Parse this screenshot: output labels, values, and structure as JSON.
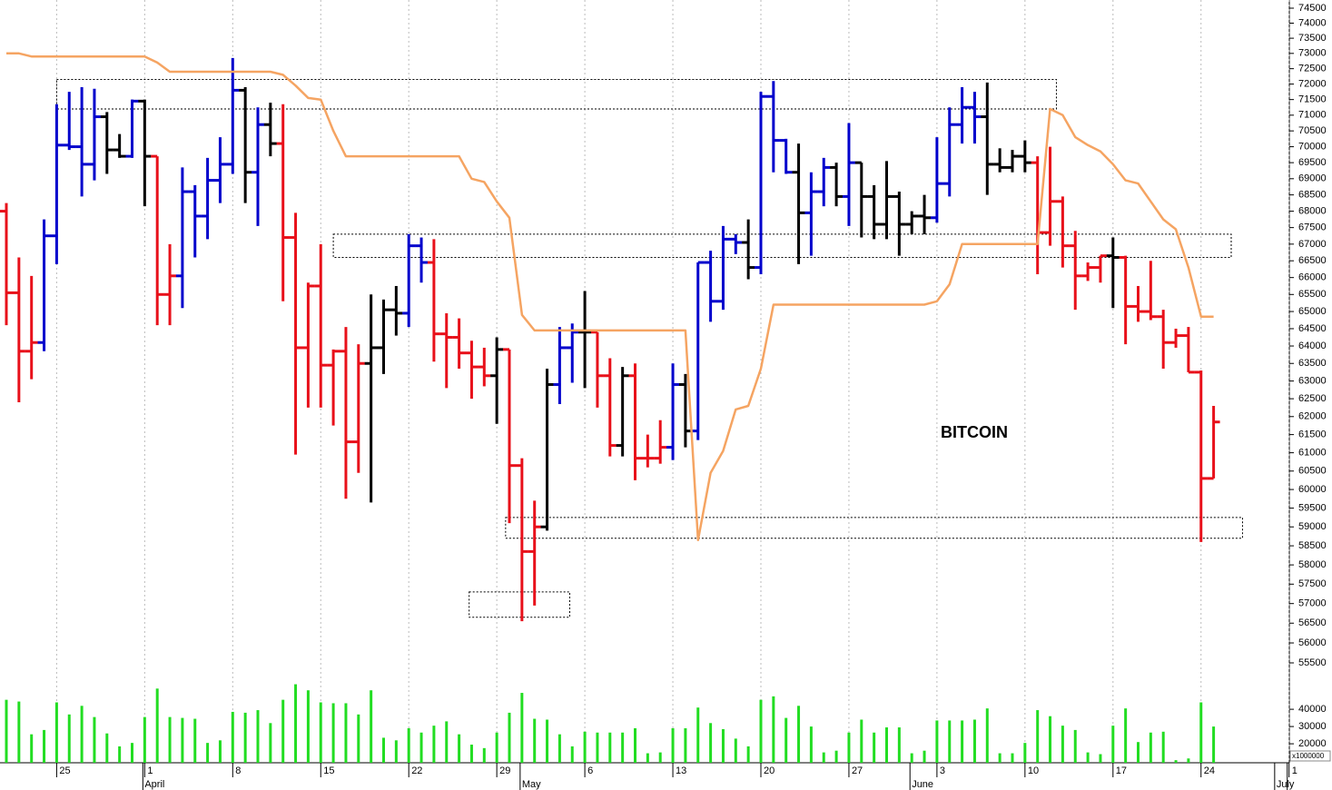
{
  "chart_data": [
    {
      "type": "ohlc",
      "annotation": "BITCOIN",
      "log_scale": true,
      "grid": true,
      "ylim": [
        55500,
        74500
      ],
      "yticks": [
        55500,
        56000,
        56500,
        57000,
        57500,
        58000,
        58500,
        59000,
        59500,
        60000,
        60500,
        61000,
        61500,
        62000,
        62500,
        63000,
        63500,
        64000,
        64500,
        65000,
        65500,
        66000,
        66500,
        67000,
        67500,
        68000,
        68500,
        69000,
        69500,
        70000,
        70500,
        71000,
        71500,
        72000,
        72500,
        73000,
        73500,
        74000,
        74500
      ],
      "categories": [
        null,
        null,
        null,
        null,
        "25",
        null,
        null,
        null,
        null,
        null,
        null,
        "1",
        null,
        null,
        null,
        null,
        null,
        null,
        "8",
        null,
        null,
        null,
        null,
        null,
        null,
        "15",
        null,
        null,
        null,
        null,
        null,
        null,
        "22",
        null,
        null,
        null,
        null,
        null,
        null,
        "29",
        null,
        null,
        null,
        null,
        null,
        null,
        "6",
        null,
        null,
        null,
        null,
        null,
        null,
        "13",
        null,
        null,
        null,
        null,
        null,
        null,
        "20",
        null,
        null,
        null,
        null,
        null,
        null,
        "27",
        null,
        null,
        null,
        null,
        null,
        null,
        "3",
        null,
        null,
        null,
        null,
        null,
        null,
        "10",
        null,
        null,
        null,
        null,
        null,
        null,
        "17",
        null,
        null,
        null,
        null,
        null,
        null,
        "24",
        null,
        null,
        null,
        null,
        null,
        null,
        "1"
      ],
      "months": [
        null,
        null,
        null,
        null,
        null,
        null,
        null,
        null,
        null,
        null,
        null,
        "April",
        null,
        null,
        null,
        null,
        null,
        null,
        null,
        null,
        null,
        null,
        null,
        null,
        null,
        null,
        null,
        null,
        null,
        null,
        null,
        null,
        null,
        null,
        null,
        null,
        null,
        null,
        null,
        null,
        null,
        "May",
        null,
        null,
        null,
        null,
        null,
        null,
        null,
        null,
        null,
        null,
        null,
        null,
        null,
        null,
        null,
        null,
        null,
        null,
        null,
        null,
        null,
        null,
        null,
        null,
        null,
        null,
        null,
        null,
        null,
        null,
        "June",
        null,
        null,
        null,
        null,
        null,
        null,
        null,
        null,
        null,
        null,
        null,
        null,
        null,
        null,
        null,
        null,
        null,
        null,
        null,
        null,
        null,
        null,
        null,
        null,
        null,
        null,
        null,
        null,
        "July"
      ],
      "open": [
        68000,
        65550,
        63850,
        64100,
        67250,
        70050,
        70000,
        69450,
        70950,
        69900,
        69700,
        71450,
        69700,
        65500,
        66050,
        68600,
        67850,
        68950,
        69450,
        71800,
        69200,
        70700,
        70100,
        67200,
        63950,
        65750,
        63450,
        63850,
        61300,
        63500,
        63950,
        65050,
        64950,
        66950,
        66450,
        64350,
        64250,
        63800,
        63400,
        63150,
        63900,
        60650,
        58350,
        59000,
        62900,
        63950,
        64400,
        64400,
        63150,
        61200,
        63150,
        60850,
        60850,
        61150,
        62900,
        61600,
        66450,
        65300,
        67150,
        67050,
        66300,
        71600,
        70200,
        69200,
        67950,
        68600,
        69350,
        68450,
        69500,
        68450,
        67600,
        68450,
        67600,
        67850,
        67800,
        68850,
        70700,
        71250,
        70950,
        69450,
        69350,
        69700,
        69500,
        67350,
        68300,
        66950,
        66050,
        66300,
        66650,
        66600,
        65150,
        65000,
        64850,
        64100,
        64300,
        63250,
        60300,
        null,
        null,
        null,
        null,
        null,
        null
      ],
      "high": [
        68250,
        66600,
        66050,
        67750,
        71350,
        71750,
        71900,
        71850,
        71100,
        70400,
        71500,
        71500,
        69700,
        67000,
        69350,
        68800,
        69650,
        70300,
        72850,
        71900,
        71250,
        71400,
        71350,
        67950,
        65850,
        67000,
        63900,
        64550,
        64050,
        65500,
        65350,
        65750,
        67300,
        67200,
        67150,
        64950,
        64800,
        64150,
        63950,
        64250,
        63900,
        60850,
        59700,
        63350,
        64550,
        64650,
        65600,
        64400,
        63650,
        63400,
        63500,
        61500,
        61900,
        63500,
        63200,
        66450,
        66800,
        67550,
        67300,
        67750,
        71750,
        72100,
        70250,
        70100,
        69200,
        69650,
        69500,
        70750,
        69500,
        68800,
        69550,
        68600,
        68000,
        68500,
        70300,
        71250,
        71900,
        71750,
        72050,
        69950,
        69900,
        70200,
        69700,
        70000,
        68450,
        67400,
        66450,
        66650,
        67200,
        66650,
        65750,
        66500,
        65050,
        64500,
        64550,
        63300,
        62300,
        null,
        null,
        null,
        null,
        null,
        null
      ],
      "low": [
        64600,
        62400,
        63050,
        63850,
        66400,
        69900,
        68450,
        68950,
        69150,
        69650,
        69650,
        68150,
        64600,
        64600,
        65100,
        66600,
        67150,
        68250,
        69150,
        68250,
        67550,
        69700,
        65300,
        60950,
        62250,
        62250,
        61750,
        59750,
        60450,
        59650,
        63200,
        64300,
        64550,
        65850,
        63550,
        62800,
        63350,
        62500,
        62850,
        61800,
        59100,
        56550,
        56950,
        58900,
        62350,
        62950,
        62800,
        62250,
        60900,
        60900,
        60250,
        60600,
        60700,
        60800,
        61150,
        61350,
        64700,
        65050,
        66700,
        65950,
        66100,
        69200,
        69150,
        66400,
        66650,
        68150,
        68150,
        67550,
        67200,
        67150,
        67150,
        66650,
        67300,
        67300,
        67650,
        68450,
        70100,
        70100,
        68500,
        69200,
        69200,
        69200,
        66100,
        66950,
        66300,
        65050,
        65900,
        65850,
        65100,
        64050,
        64700,
        64750,
        63350,
        63950,
        63250,
        58600,
        60300,
        null,
        null,
        null,
        null,
        null,
        null
      ],
      "close": [
        65550,
        63850,
        64100,
        67250,
        70050,
        70000,
        69450,
        70950,
        69900,
        69700,
        71450,
        69700,
        65500,
        66050,
        68600,
        67850,
        68950,
        69450,
        71800,
        69200,
        70700,
        70100,
        67200,
        63950,
        65750,
        63450,
        63850,
        61300,
        63500,
        63950,
        65050,
        64950,
        66950,
        66450,
        64350,
        64250,
        63800,
        63400,
        63150,
        63900,
        60650,
        58350,
        59000,
        62900,
        63950,
        64400,
        64400,
        63150,
        61200,
        63150,
        60850,
        60850,
        61150,
        62900,
        61600,
        66450,
        65300,
        67150,
        67050,
        66300,
        71600,
        70200,
        69200,
        67950,
        68600,
        69350,
        68450,
        69500,
        68450,
        67600,
        68450,
        67600,
        67850,
        67800,
        68850,
        70700,
        71250,
        70950,
        69450,
        69350,
        69700,
        69500,
        67350,
        68300,
        66950,
        66050,
        66300,
        66650,
        66600,
        65150,
        65000,
        64850,
        64100,
        64300,
        63250,
        60300,
        61850,
        null,
        null,
        null,
        null,
        null,
        null
      ],
      "colors": [
        "#e8101a",
        "#e8101a",
        "#e8101a",
        "#0000cc",
        "#0000cc",
        "#0000cc",
        "#0000cc",
        "#0000cc",
        "#000000",
        "#000000",
        "#0000cc",
        "#000000",
        "#e8101a",
        "#e8101a",
        "#0000cc",
        "#0000cc",
        "#0000cc",
        "#0000cc",
        "#0000cc",
        "#000000",
        "#0000cc",
        "#000000",
        "#e8101a",
        "#e8101a",
        "#e8101a",
        "#e8101a",
        "#e8101a",
        "#e8101a",
        "#e8101a",
        "#000000",
        "#000000",
        "#000000",
        "#0000cc",
        "#0000cc",
        "#e8101a",
        "#e8101a",
        "#e8101a",
        "#e8101a",
        "#e8101a",
        "#000000",
        "#e8101a",
        "#e8101a",
        "#e8101a",
        "#000000",
        "#0000cc",
        "#0000cc",
        "#000000",
        "#e8101a",
        "#e8101a",
        "#000000",
        "#e8101a",
        "#e8101a",
        "#e8101a",
        "#0000cc",
        "#000000",
        "#0000cc",
        "#0000cc",
        "#0000cc",
        "#0000cc",
        "#000000",
        "#0000cc",
        "#0000cc",
        "#0000cc",
        "#000000",
        "#0000cc",
        "#0000cc",
        "#000000",
        "#0000cc",
        "#000000",
        "#000000",
        "#000000",
        "#000000",
        "#000000",
        "#000000",
        "#0000cc",
        "#0000cc",
        "#0000cc",
        "#0000cc",
        "#000000",
        "#000000",
        "#000000",
        "#000000",
        "#e8101a",
        "#e8101a",
        "#e8101a",
        "#e8101a",
        "#e8101a",
        "#e8101a",
        "#000000",
        "#e8101a",
        "#e8101a",
        "#e8101a",
        "#e8101a",
        "#e8101a",
        "#e8101a",
        "#e8101a",
        "#e8101a",
        null,
        null,
        null,
        null,
        null,
        null
      ],
      "overlay": {
        "color": "#f5a462",
        "values": [
          73000,
          73000,
          72900,
          72900,
          72900,
          72900,
          72900,
          72900,
          72900,
          72900,
          72900,
          72900,
          72700,
          72400,
          72400,
          72400,
          72400,
          72400,
          72400,
          72400,
          72400,
          72400,
          72300,
          71950,
          71550,
          71500,
          70500,
          69700,
          69700,
          69700,
          69700,
          69700,
          69700,
          69700,
          69700,
          69700,
          69700,
          69000,
          68900,
          68300,
          67800,
          64900,
          64450,
          64450,
          64450,
          64450,
          64450,
          64450,
          64450,
          64450,
          64450,
          64450,
          64450,
          64450,
          64450,
          58650,
          60450,
          61050,
          62200,
          62300,
          63350,
          65200,
          65200,
          65200,
          65200,
          65200,
          65200,
          65200,
          65200,
          65200,
          65200,
          65200,
          65200,
          65200,
          65300,
          65800,
          67000,
          67000,
          67000,
          67000,
          67000,
          67000,
          67000,
          71200,
          71000,
          70300,
          70050,
          69850,
          69450,
          68950,
          68850,
          68300,
          67750,
          67450,
          66300,
          64850,
          64850,
          null,
          null,
          null,
          null,
          null,
          null
        ]
      },
      "zones": [
        {
          "x": [
            4,
            83.5
          ],
          "y": [
            71200,
            72150
          ]
        },
        {
          "x": [
            26,
            97.4
          ],
          "y": [
            66600,
            67300
          ]
        },
        {
          "x": [
            39.7,
            98.3
          ],
          "y": [
            58700,
            59250
          ]
        },
        {
          "x": [
            36.8,
            44.8
          ],
          "y": [
            56650,
            57300
          ]
        }
      ]
    },
    {
      "type": "bar",
      "color": "#22dd22",
      "unit_label": "x1000000",
      "ylim": [
        9000,
        56000
      ],
      "yticks": [
        20000,
        30000,
        40000
      ],
      "values": [
        45500,
        44500,
        25500,
        28000,
        44000,
        37000,
        42000,
        35500,
        26000,
        18500,
        20500,
        35500,
        52000,
        35500,
        35000,
        34500,
        20500,
        22000,
        38500,
        38000,
        39500,
        32000,
        45500,
        54500,
        51000,
        44000,
        43500,
        43500,
        37000,
        51000,
        23500,
        22000,
        29000,
        26500,
        30500,
        33000,
        25500,
        19500,
        17500,
        26500,
        38000,
        49500,
        34500,
        34000,
        25500,
        18500,
        27000,
        26500,
        26500,
        26500,
        29000,
        14500,
        15000,
        29000,
        29000,
        41000,
        32000,
        28500,
        23000,
        18500,
        45500,
        47500,
        35000,
        42000,
        30000,
        15000,
        16000,
        26500,
        34000,
        26500,
        29500,
        29500,
        14500,
        16000,
        33500,
        33500,
        33500,
        34000,
        40500,
        14500,
        14500,
        20500,
        39500,
        36000,
        30500,
        28000,
        15000,
        14000,
        30500,
        40500,
        21000,
        26500,
        27000,
        10500,
        11500,
        44000,
        30000,
        null,
        null,
        null,
        null,
        null,
        null
      ]
    }
  ]
}
